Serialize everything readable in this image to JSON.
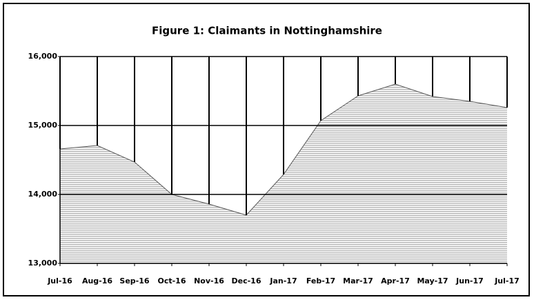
{
  "chart_data": {
    "type": "area",
    "title": "Figure 1: Claimants in Nottinghamshire",
    "categories": [
      "Jul-16",
      "Aug-16",
      "Sep-16",
      "Oct-16",
      "Nov-16",
      "Dec-16",
      "Jan-17",
      "Feb-17",
      "Mar-17",
      "Apr-17",
      "May-17",
      "Jun-17",
      "Jul-17"
    ],
    "values": [
      14660,
      14710,
      14470,
      14000,
      13860,
      13700,
      14290,
      15070,
      15430,
      15600,
      15420,
      15350,
      15260
    ],
    "color": "#bbbbbb",
    "ylim": [
      13000,
      16000
    ],
    "yticks": [
      {
        "value": 13000,
        "label": "13,000"
      },
      {
        "value": 14000,
        "label": "14,000"
      },
      {
        "value": 15000,
        "label": "15,000"
      },
      {
        "value": 16000,
        "label": "16,000"
      }
    ],
    "grid": true
  }
}
